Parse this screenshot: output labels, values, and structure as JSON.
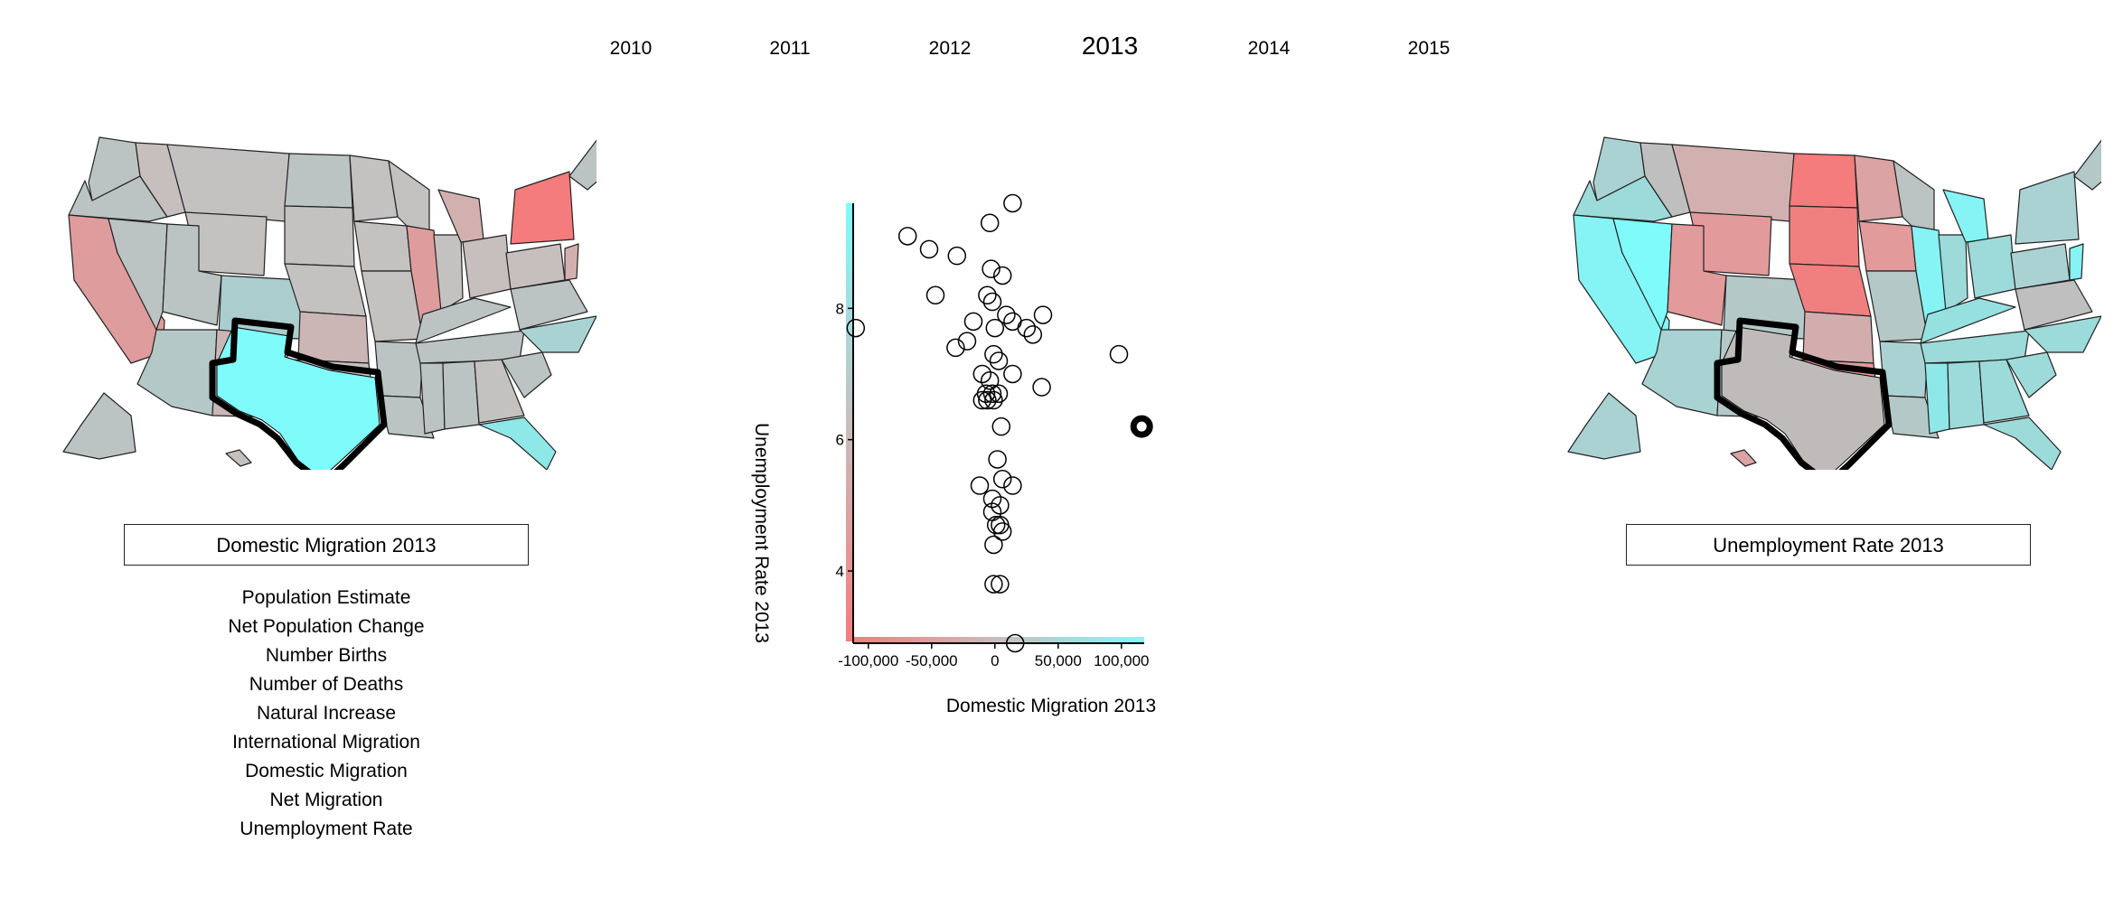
{
  "years": {
    "items": [
      {
        "label": "2010",
        "active": false
      },
      {
        "label": "2011",
        "active": false
      },
      {
        "label": "2012",
        "active": false
      },
      {
        "label": "2013",
        "active": true
      },
      {
        "label": "2014",
        "active": false
      },
      {
        "label": "2015",
        "active": false
      }
    ]
  },
  "left_panel": {
    "selector_label": "Domestic Migration 2013",
    "variables": [
      "Population Estimate",
      "Net Population Change",
      "Number Births",
      "Number of Deaths",
      "Natural Increase",
      "International Migration",
      "Domestic Migration",
      "Net Migration",
      "Unemployment Rate"
    ]
  },
  "right_panel": {
    "selector_label": "Unemployment Rate 2013"
  },
  "colors": {
    "low": "#f47c7c",
    "mid": "#c8bebe",
    "high": "#80fbfb",
    "highlight_outline": "#000000"
  },
  "chart_data": {
    "type": "scatter",
    "xlabel": "Domestic Migration 2013",
    "ylabel": "Unemployment Rate 2013",
    "xlim": [
      -112000,
      118000
    ],
    "ylim": [
      2.9,
      9.6
    ],
    "xticks": [
      {
        "value": -100000,
        "label": "-100,000"
      },
      {
        "value": -50000,
        "label": "-50,000"
      },
      {
        "value": 0,
        "label": "0"
      },
      {
        "value": 50000,
        "label": "50,000"
      },
      {
        "value": 100000,
        "label": "100,000"
      }
    ],
    "yticks": [
      {
        "value": 4,
        "label": "4"
      },
      {
        "value": 6,
        "label": "6"
      },
      {
        "value": 8,
        "label": "8"
      }
    ],
    "highlighted": [
      116000,
      6.2
    ],
    "points": [
      [
        -110000,
        7.7
      ],
      [
        14000,
        9.6
      ],
      [
        -69000,
        9.1
      ],
      [
        -52000,
        8.9
      ],
      [
        -30000,
        8.8
      ],
      [
        -4000,
        9.3
      ],
      [
        -3000,
        8.6
      ],
      [
        6000,
        8.5
      ],
      [
        -47000,
        8.2
      ],
      [
        -6000,
        8.2
      ],
      [
        -2000,
        8.1
      ],
      [
        9000,
        7.9
      ],
      [
        14000,
        7.8
      ],
      [
        38000,
        7.9
      ],
      [
        -17000,
        7.8
      ],
      [
        0,
        7.7
      ],
      [
        25000,
        7.7
      ],
      [
        30000,
        7.6
      ],
      [
        -22000,
        7.5
      ],
      [
        -31000,
        7.4
      ],
      [
        98000,
        7.3
      ],
      [
        -1000,
        7.3
      ],
      [
        3000,
        7.2
      ],
      [
        -10000,
        7.0
      ],
      [
        14000,
        7.0
      ],
      [
        -4000,
        6.9
      ],
      [
        37000,
        6.8
      ],
      [
        -7000,
        6.7
      ],
      [
        -2000,
        6.7
      ],
      [
        3000,
        6.7
      ],
      [
        -10000,
        6.6
      ],
      [
        -6000,
        6.6
      ],
      [
        -1000,
        6.6
      ],
      [
        5000,
        6.2
      ],
      [
        2000,
        5.7
      ],
      [
        6000,
        5.4
      ],
      [
        -12000,
        5.3
      ],
      [
        14000,
        5.3
      ],
      [
        -2000,
        5.1
      ],
      [
        4000,
        5.0
      ],
      [
        -2000,
        4.9
      ],
      [
        1000,
        4.7
      ],
      [
        4000,
        4.7
      ],
      [
        6000,
        4.6
      ],
      [
        -1000,
        4.4
      ],
      [
        -1000,
        3.8
      ],
      [
        4000,
        3.8
      ],
      [
        16000,
        2.9
      ]
    ]
  }
}
